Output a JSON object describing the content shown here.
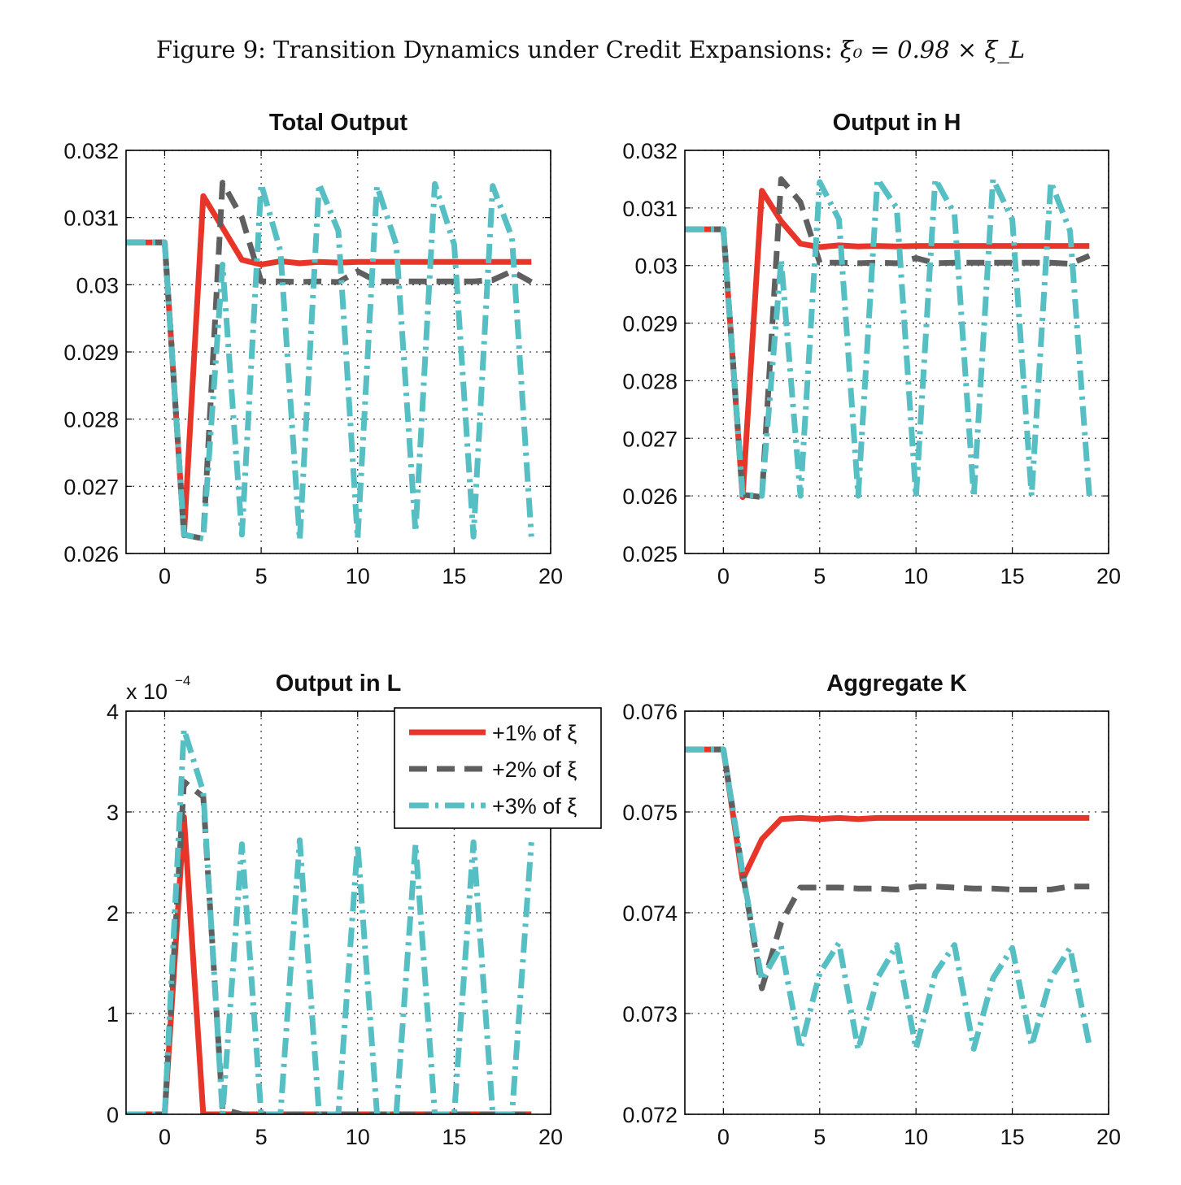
{
  "figure_title": {
    "prefix": "Figure 9: Transition Dynamics under Credit Expansions: ",
    "math": "ξ₀ = 0.98 × ξ_L"
  },
  "colors": {
    "s1": "#e8352a",
    "s2": "#5f5f5f",
    "s3": "#55bfc3",
    "grid": "#444444"
  },
  "legend": {
    "entries": [
      "+1% of ξ",
      "+2% of ξ",
      "+3% of ξ"
    ]
  },
  "chart_data": [
    {
      "type": "line",
      "title": "Total Output",
      "xlim": [
        -2,
        20
      ],
      "ylim": [
        0.026,
        0.032
      ],
      "xticks": [
        "0",
        "5",
        "10",
        "15",
        "20"
      ],
      "yticks": [
        "0.026",
        "0.027",
        "0.028",
        "0.029",
        "0.03",
        "0.031",
        "0.032"
      ],
      "grid": true,
      "x": [
        -2,
        -1,
        0,
        1,
        2,
        3,
        4,
        5,
        6,
        7,
        8,
        9,
        10,
        11,
        12,
        13,
        14,
        15,
        16,
        17,
        18,
        19
      ],
      "series": [
        {
          "name": "+1% of ξ",
          "values": [
            0.03063,
            0.03063,
            0.03063,
            0.02627,
            0.03132,
            0.03085,
            0.03037,
            0.0303,
            0.03035,
            0.03032,
            0.03034,
            0.03033,
            0.03034,
            0.03034,
            0.03034,
            0.03034,
            0.03034,
            0.03034,
            0.03034,
            0.03034,
            0.03034,
            0.03034
          ]
        },
        {
          "name": "+2% of ξ",
          "values": [
            0.03063,
            0.03063,
            0.03063,
            0.02628,
            0.02622,
            0.03152,
            0.031,
            0.03005,
            0.03005,
            0.03004,
            0.03005,
            0.03004,
            0.0302,
            0.03005,
            0.03005,
            0.03005,
            0.03005,
            0.03005,
            0.03005,
            0.03007,
            0.0302,
            0.03004
          ]
        },
        {
          "name": "+3% of ξ",
          "values": [
            0.03063,
            0.03063,
            0.03063,
            0.02628,
            0.02622,
            0.0303,
            0.02628,
            0.0315,
            0.0305,
            0.0262,
            0.0315,
            0.0308,
            0.02622,
            0.03147,
            0.0306,
            0.02632,
            0.0315,
            0.0306,
            0.02625,
            0.03147,
            0.0307,
            0.02625
          ]
        }
      ]
    },
    {
      "type": "line",
      "title": "Output in H",
      "xlim": [
        -2,
        20
      ],
      "ylim": [
        0.025,
        0.032
      ],
      "xticks": [
        "0",
        "5",
        "10",
        "15",
        "20"
      ],
      "yticks": [
        "0.025",
        "0.026",
        "0.027",
        "0.028",
        "0.029",
        "0.03",
        "0.031",
        "0.032"
      ],
      "grid": true,
      "x": [
        -2,
        -1,
        0,
        1,
        2,
        3,
        4,
        5,
        6,
        7,
        8,
        9,
        10,
        11,
        12,
        13,
        14,
        15,
        16,
        17,
        18,
        19
      ],
      "series": [
        {
          "name": "+1% of ξ",
          "values": [
            0.03063,
            0.03063,
            0.03063,
            0.02598,
            0.0313,
            0.03077,
            0.03038,
            0.03032,
            0.03035,
            0.03033,
            0.03034,
            0.03033,
            0.03034,
            0.03034,
            0.03034,
            0.03034,
            0.03034,
            0.03034,
            0.03034,
            0.03034,
            0.03034,
            0.03034
          ]
        },
        {
          "name": "+2% of ξ",
          "values": [
            0.03063,
            0.03063,
            0.03063,
            0.02602,
            0.02598,
            0.0315,
            0.0311,
            0.03005,
            0.03005,
            0.03004,
            0.03005,
            0.03004,
            0.03013,
            0.03004,
            0.03005,
            0.03005,
            0.03005,
            0.03005,
            0.03005,
            0.03005,
            0.03003,
            0.03017
          ]
        },
        {
          "name": "+3% of ξ",
          "values": [
            0.03063,
            0.03063,
            0.03063,
            0.02602,
            0.026,
            0.0301,
            0.026,
            0.03145,
            0.0308,
            0.026,
            0.0315,
            0.031,
            0.02598,
            0.0315,
            0.0309,
            0.02598,
            0.0315,
            0.0308,
            0.026,
            0.03145,
            0.0306,
            0.026
          ]
        }
      ]
    },
    {
      "type": "line",
      "title": "Output in L",
      "y_multiplier": {
        "base": "x 10",
        "exponent": "−4"
      },
      "xlim": [
        -2,
        20
      ],
      "ylim": [
        0,
        4
      ],
      "xticks": [
        "0",
        "5",
        "10",
        "15",
        "20"
      ],
      "yticks": [
        "0",
        "1",
        "2",
        "3",
        "4"
      ],
      "grid": true,
      "x": [
        -2,
        -1,
        0,
        1,
        2,
        3,
        4,
        5,
        6,
        7,
        8,
        9,
        10,
        11,
        12,
        13,
        14,
        15,
        16,
        17,
        18,
        19
      ],
      "series": [
        {
          "name": "+1% of ξ",
          "values": [
            0,
            0,
            0,
            2.95,
            0,
            0,
            0,
            0,
            0,
            0,
            0,
            0,
            0,
            0,
            0,
            0,
            0,
            0,
            0,
            0,
            0,
            0
          ]
        },
        {
          "name": "+2% of ξ",
          "values": [
            0,
            0,
            0,
            3.3,
            3.15,
            0.05,
            0,
            0,
            0,
            0,
            0,
            0,
            0,
            0,
            0,
            0,
            0,
            0,
            0,
            0,
            0,
            0
          ]
        },
        {
          "name": "+3% of ξ",
          "values": [
            0,
            0,
            0,
            3.82,
            3.2,
            0,
            2.68,
            0,
            0,
            2.72,
            0,
            0,
            2.68,
            0,
            0,
            2.68,
            0,
            0,
            2.7,
            0,
            0,
            2.7
          ]
        }
      ]
    },
    {
      "type": "line",
      "title": "Aggregate K",
      "xlim": [
        -2,
        20
      ],
      "ylim": [
        0.072,
        0.076
      ],
      "xticks": [
        "0",
        "5",
        "10",
        "15",
        "20"
      ],
      "yticks": [
        "0.072",
        "0.073",
        "0.074",
        "0.075",
        "0.076"
      ],
      "grid": true,
      "x": [
        -2,
        -1,
        0,
        1,
        2,
        3,
        4,
        5,
        6,
        7,
        8,
        9,
        10,
        11,
        12,
        13,
        14,
        15,
        16,
        17,
        18,
        19
      ],
      "series": [
        {
          "name": "+1% of ξ",
          "values": [
            0.07562,
            0.07562,
            0.07562,
            0.07433,
            0.07473,
            0.07493,
            0.07494,
            0.07493,
            0.07494,
            0.07493,
            0.07494,
            0.07494,
            0.07494,
            0.07494,
            0.07494,
            0.07494,
            0.07494,
            0.07494,
            0.07494,
            0.07494,
            0.07494,
            0.07494
          ]
        },
        {
          "name": "+2% of ξ",
          "values": [
            0.07562,
            0.07562,
            0.07562,
            0.0744,
            0.07325,
            0.0739,
            0.07425,
            0.07425,
            0.07425,
            0.07424,
            0.07424,
            0.07423,
            0.07426,
            0.07426,
            0.07425,
            0.07424,
            0.07424,
            0.07423,
            0.07423,
            0.07423,
            0.07426,
            0.07426
          ]
        },
        {
          "name": "+3% of ξ",
          "values": [
            0.07562,
            0.07562,
            0.07562,
            0.0744,
            0.07333,
            0.07367,
            0.07265,
            0.0734,
            0.0737,
            0.07264,
            0.07335,
            0.07368,
            0.07265,
            0.0734,
            0.07368,
            0.07265,
            0.07335,
            0.07365,
            0.07268,
            0.07335,
            0.07365,
            0.07268
          ]
        }
      ]
    }
  ]
}
